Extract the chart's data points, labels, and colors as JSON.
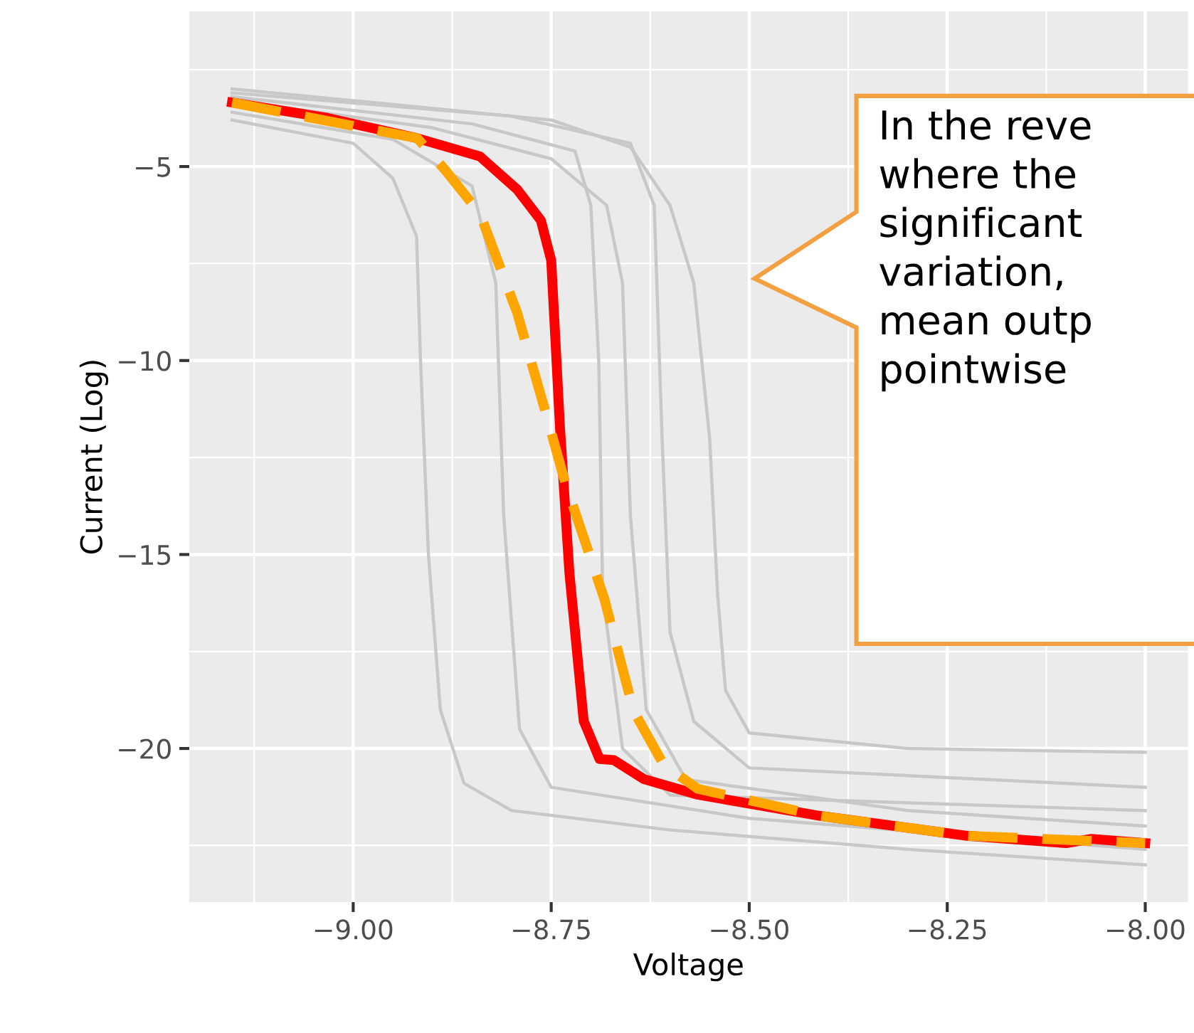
{
  "chart_data": {
    "type": "line",
    "xlabel": "Voltage",
    "ylabel": "Current (Log)",
    "xlim": [
      -9.207,
      -7.946
    ],
    "ylim": [
      -23.96,
      -1.0
    ],
    "xticks": [
      {
        "value": -9.0,
        "label": "−9.00"
      },
      {
        "value": -8.75,
        "label": "−8.75"
      },
      {
        "value": -8.5,
        "label": "−8.50"
      },
      {
        "value": -8.25,
        "label": "−8.25"
      },
      {
        "value": -8.0,
        "label": "−8.00"
      }
    ],
    "yticks": [
      {
        "value": -20,
        "label": "−20"
      },
      {
        "value": -15,
        "label": "−15"
      },
      {
        "value": -10,
        "label": "−10"
      },
      {
        "value": -5,
        "label": "−5"
      }
    ],
    "grid": true,
    "legend": false,
    "annotations": [
      "In the reve\nwhere the\nsignificant\nvariation,\nmean outp\npointwise"
    ],
    "series": [
      {
        "color": "#c8c8c8",
        "line_style": "solid",
        "x": [
          -9.153,
          -9.0,
          -8.95,
          -8.92,
          -8.915,
          -8.905,
          -8.89,
          -8.86,
          -8.8,
          -8.6,
          -8.3,
          -8.0
        ],
        "values": [
          -3.8,
          -4.4,
          -5.3,
          -6.8,
          -10,
          -15,
          -19,
          -20.9,
          -21.6,
          -22.1,
          -22.6,
          -23.0
        ]
      },
      {
        "color": "#c8c8c8",
        "line_style": "solid",
        "x": [
          -9.153,
          -9.0,
          -8.75,
          -8.65,
          -8.6,
          -8.57,
          -8.55,
          -8.54,
          -8.53,
          -8.5,
          -8.3,
          -8.0
        ],
        "values": [
          -3.0,
          -3.3,
          -3.8,
          -4.5,
          -6.0,
          -8,
          -12,
          -16,
          -18.5,
          -19.6,
          -20.0,
          -20.1
        ]
      },
      {
        "color": "#c8c8c8",
        "line_style": "solid",
        "x": [
          -9.153,
          -8.9,
          -8.75,
          -8.68,
          -8.66,
          -8.65,
          -8.63,
          -8.58,
          -8.3,
          -8.0
        ],
        "values": [
          -3.3,
          -4.0,
          -4.8,
          -6,
          -8,
          -14,
          -19,
          -20.8,
          -21.6,
          -22.0
        ]
      },
      {
        "color": "#c8c8c8",
        "line_style": "solid",
        "x": [
          -9.153,
          -8.95,
          -8.85,
          -8.82,
          -8.81,
          -8.79,
          -8.75,
          -8.5,
          -8.0
        ],
        "values": [
          -3.6,
          -4.3,
          -5.5,
          -8,
          -14,
          -19.5,
          -21,
          -21.8,
          -22.6
        ]
      },
      {
        "color": "#c8c8c8",
        "line_style": "solid",
        "x": [
          -9.153,
          -8.85,
          -8.72,
          -8.7,
          -8.69,
          -8.685,
          -8.66,
          -8.6,
          -8.0
        ],
        "values": [
          -3.2,
          -3.9,
          -4.6,
          -6,
          -10,
          -16,
          -20,
          -21.2,
          -21.6
        ]
      },
      {
        "color": "#c8c8c8",
        "line_style": "solid",
        "x": [
          -9.153,
          -8.8,
          -8.65,
          -8.62,
          -8.61,
          -8.6,
          -8.57,
          -8.5,
          -8.0
        ],
        "values": [
          -3.1,
          -3.7,
          -4.4,
          -6,
          -12,
          -17,
          -19.3,
          -20.5,
          -21.0
        ]
      },
      {
        "color": "#ff0000",
        "line_style": "solid",
        "x": [
          -9.153,
          -9.032,
          -8.919,
          -8.84,
          -8.793,
          -8.763,
          -8.75,
          -8.739,
          -8.727,
          -8.709,
          -8.689,
          -8.671,
          -8.633,
          -8.565,
          -8.41,
          -8.225,
          -8.1,
          -8.068,
          -8.0
        ],
        "values": [
          -3.35,
          -3.75,
          -4.27,
          -4.74,
          -5.59,
          -6.39,
          -7.42,
          -11.7,
          -15.48,
          -19.29,
          -20.27,
          -20.3,
          -20.79,
          -21.19,
          -21.74,
          -22.25,
          -22.44,
          -22.33,
          -22.44
        ]
      },
      {
        "color": "#ffa500",
        "line_style": "dashed",
        "x": [
          -9.153,
          -8.919,
          -8.883,
          -8.84,
          -8.793,
          -8.757,
          -8.732,
          -8.683,
          -8.646,
          -8.608,
          -8.565,
          -8.41,
          -8.225,
          -8.0
        ],
        "values": [
          -3.35,
          -4.27,
          -5.11,
          -6.21,
          -8.77,
          -11.34,
          -13.17,
          -16.14,
          -19.03,
          -20.42,
          -21.04,
          -21.74,
          -22.25,
          -22.44
        ]
      }
    ]
  }
}
